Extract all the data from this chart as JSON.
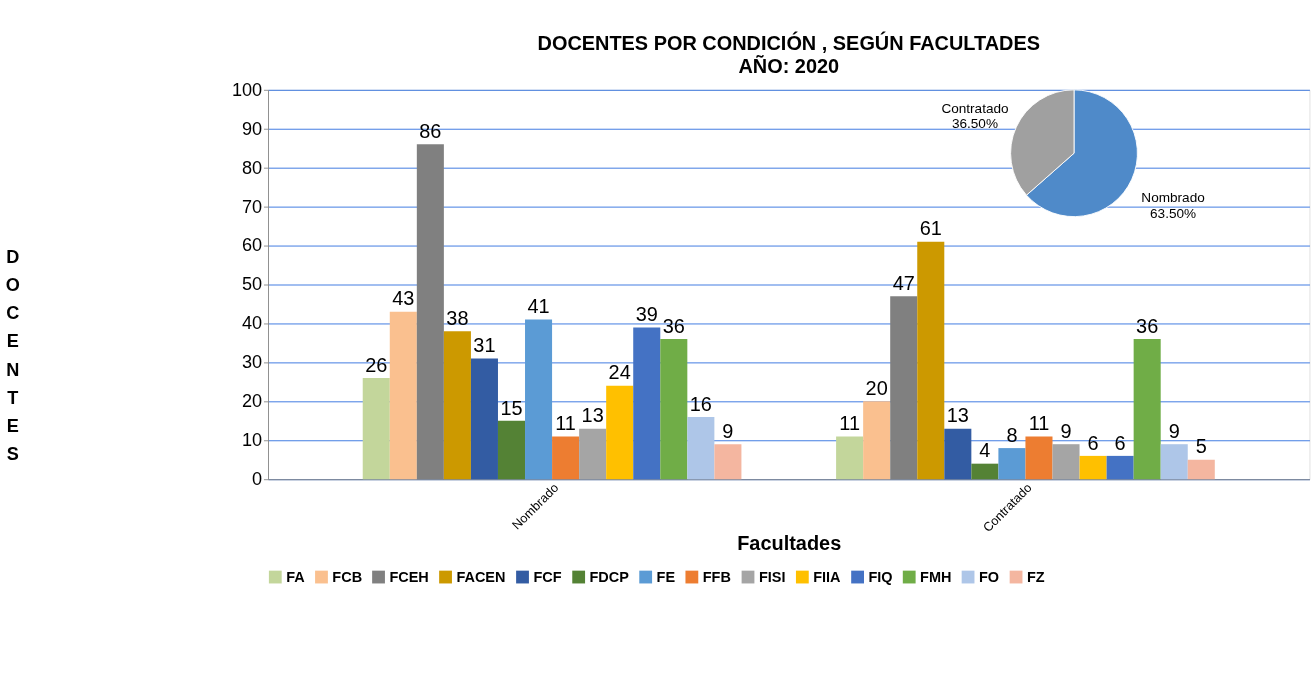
{
  "chart_data": [
    {
      "type": "bar",
      "title": "DOCENTES POR CONDICIÓN , SEGÚN FACULTADES",
      "subtitle": "AÑO: 2020",
      "xlabel": "Facultades",
      "ylabel": "DOCENTES",
      "categories": [
        "Nombrado",
        "Contratado"
      ],
      "series": [
        {
          "name": "FA",
          "color": "#c3d69b",
          "values": [
            26,
            11
          ]
        },
        {
          "name": "FCB",
          "color": "#fac08f",
          "values": [
            43,
            20
          ]
        },
        {
          "name": "FCEH",
          "color": "#808080",
          "values": [
            86,
            47
          ]
        },
        {
          "name": "FACEN",
          "color": "#cc9900",
          "values": [
            38,
            61
          ]
        },
        {
          "name": "FCF",
          "color": "#335ca3",
          "values": [
            31,
            13
          ]
        },
        {
          "name": "FDCP",
          "color": "#548235",
          "values": [
            15,
            4
          ]
        },
        {
          "name": "FE",
          "color": "#5b9bd5",
          "values": [
            41,
            8
          ]
        },
        {
          "name": "FFB",
          "color": "#ed7d31",
          "values": [
            11,
            11
          ]
        },
        {
          "name": "FISI",
          "color": "#a5a5a5",
          "values": [
            13,
            9
          ]
        },
        {
          "name": "FIIA",
          "color": "#ffc000",
          "values": [
            24,
            6
          ]
        },
        {
          "name": "FIQ",
          "color": "#4472c4",
          "values": [
            39,
            6
          ]
        },
        {
          "name": "FMH",
          "color": "#70ad47",
          "values": [
            36,
            36
          ]
        },
        {
          "name": "FO",
          "color": "#aec6e8",
          "values": [
            16,
            9
          ]
        },
        {
          "name": "FZ",
          "color": "#f4b6a0",
          "values": [
            9,
            5
          ]
        }
      ],
      "ylim": [
        0,
        100
      ],
      "yticks": [
        0,
        10,
        20,
        30,
        40,
        50,
        60,
        70,
        80,
        90,
        100
      ],
      "grid": "y",
      "legend": "bottom",
      "data_labels": true
    },
    {
      "type": "pie",
      "categories": [
        "Nombrado",
        "Contratado"
      ],
      "values": [
        63.5,
        36.5
      ],
      "colors": [
        "#4f8ac9",
        "#a0a0a0"
      ],
      "value_labels": [
        "63.50%",
        "36.50%"
      ]
    }
  ]
}
